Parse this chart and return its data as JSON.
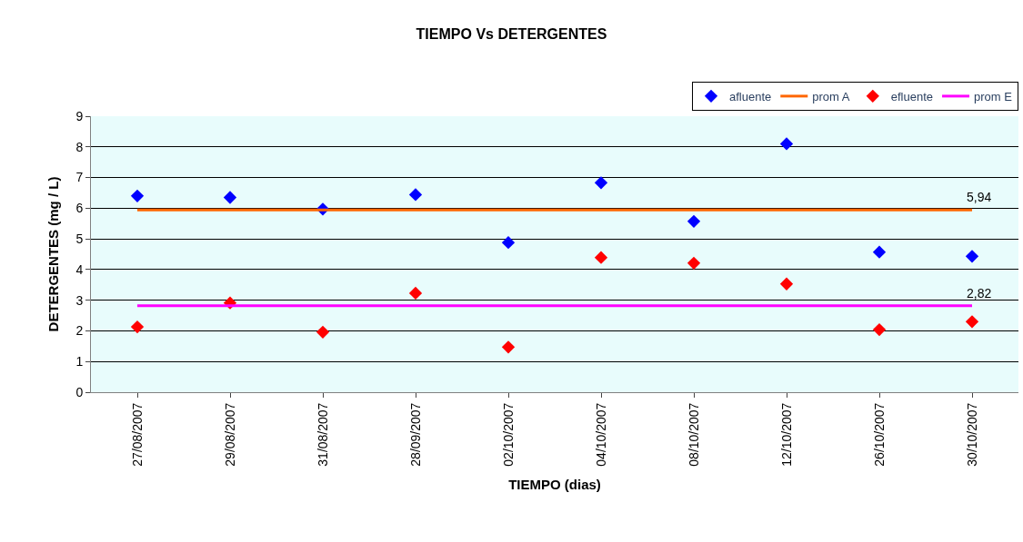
{
  "chart_data": {
    "type": "scatter",
    "title": "TIEMPO Vs DETERGENTES",
    "xlabel": "TIEMPO (dias)",
    "ylabel": "DETERGENTES (mg / L)",
    "categories": [
      "27/08/2007",
      "29/08/2007",
      "31/08/2007",
      "28/09/2007",
      "02/10/2007",
      "04/10/2007",
      "08/10/2007",
      "12/10/2007",
      "26/10/2007",
      "30/10/2007"
    ],
    "series": [
      {
        "name": "afluente",
        "marker": "diamond",
        "color": "#0000ff",
        "values": [
          6.4,
          6.35,
          5.97,
          6.44,
          4.88,
          6.83,
          5.57,
          8.1,
          4.57,
          4.43
        ]
      },
      {
        "name": "prom A",
        "type": "line",
        "marker": "none",
        "color": "#ff6600",
        "values": [
          5.94,
          5.94,
          5.94,
          5.94,
          5.94,
          5.94,
          5.94,
          5.94,
          5.94,
          5.94
        ]
      },
      {
        "name": "efluente",
        "marker": "diamond",
        "color": "#ff0000",
        "values": [
          2.13,
          2.91,
          1.96,
          3.23,
          1.47,
          4.39,
          4.21,
          3.53,
          2.04,
          2.3
        ]
      },
      {
        "name": "prom E",
        "type": "line",
        "marker": "none",
        "color": "#ff00ff",
        "values": [
          2.82,
          2.82,
          2.82,
          2.82,
          2.82,
          2.82,
          2.82,
          2.82,
          2.82,
          2.82
        ]
      }
    ],
    "annotations": [
      {
        "text": "5,94",
        "x": "30/10/2007",
        "y": 5.94
      },
      {
        "text": "2,82",
        "x": "30/10/2007",
        "y": 2.82
      }
    ],
    "ylim": [
      0,
      9
    ],
    "yticks": [
      0,
      1,
      2,
      3,
      4,
      5,
      6,
      7,
      8,
      9
    ],
    "grid": "y",
    "legend": "top right"
  }
}
